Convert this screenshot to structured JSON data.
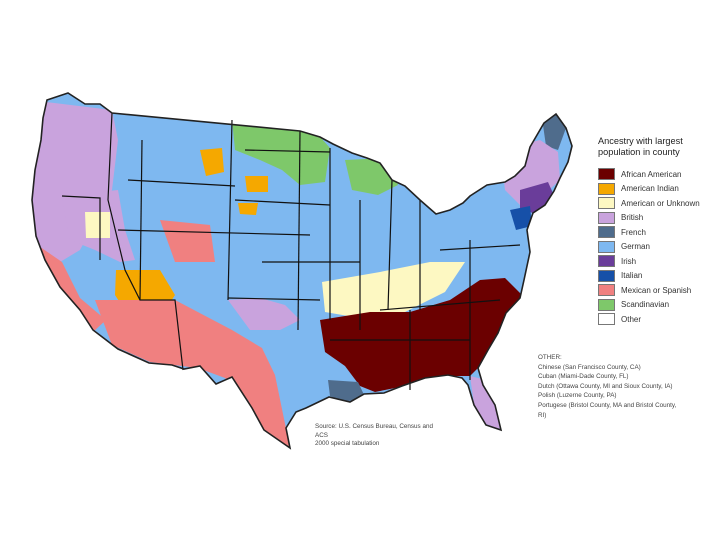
{
  "legend": {
    "title": "Ancestry with largest population in county",
    "items": [
      {
        "label": "African American",
        "color": "#6b0000"
      },
      {
        "label": "American Indian",
        "color": "#f5a800"
      },
      {
        "label": "American or Unknown",
        "color": "#fdf8c2"
      },
      {
        "label": "British",
        "color": "#c9a3dd"
      },
      {
        "label": "French",
        "color": "#4f6c8c"
      },
      {
        "label": "German",
        "color": "#7eb8f0"
      },
      {
        "label": "Irish",
        "color": "#6a3d9a"
      },
      {
        "label": "Italian",
        "color": "#1650a8"
      },
      {
        "label": "Mexican or Spanish",
        "color": "#f08080"
      },
      {
        "label": "Scandinavian",
        "color": "#7ec86a"
      },
      {
        "label": "Other",
        "color": "#ffffff"
      }
    ]
  },
  "others": {
    "heading": "OTHER:",
    "lines": [
      "Chinese (San Francisco County, CA)",
      "Cuban (Miami-Dade County, FL)",
      "Dutch (Ottawa County, MI and Sioux County, IA)",
      "Polish (Luzerne County, PA)",
      "Portugese (Bristol County, MA and Bristol County,",
      "RI)"
    ]
  },
  "source": {
    "line1": "Source: U.S. Census Bureau, Census and ACS",
    "line2": "2000 special tabulation"
  }
}
